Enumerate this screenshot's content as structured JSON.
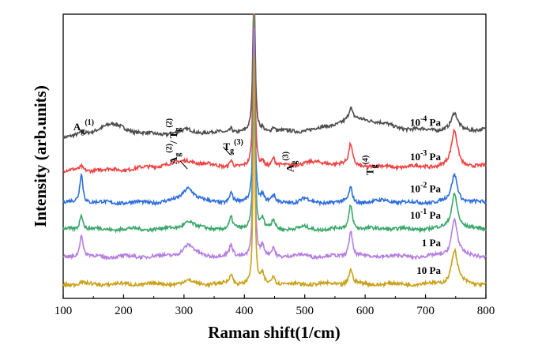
{
  "chart_data": {
    "type": "line",
    "xlabel": "Raman shift(1/cm)",
    "ylabel": "Intensity (arb.units)",
    "xlim": [
      100,
      800
    ],
    "xticks": [
      100,
      200,
      300,
      400,
      500,
      600,
      700,
      800
    ],
    "tick_labels": [
      "100",
      "200",
      "300",
      "400",
      "500",
      "600",
      "700",
      "800"
    ],
    "grid": false,
    "legend": "series labels printed beside each curve on the right",
    "peaks": [
      {
        "center": 130,
        "width": 3
      },
      {
        "center": 307,
        "width": 12
      },
      {
        "center": 378,
        "width": 3
      },
      {
        "center": 416,
        "width": 1.6
      },
      {
        "center": 430,
        "width": 3
      },
      {
        "center": 448,
        "width": 3
      },
      {
        "center": 500,
        "width": 8
      },
      {
        "center": 576,
        "width": 3.5
      },
      {
        "center": 632,
        "width": 10
      },
      {
        "center": 748,
        "width": 6
      }
    ],
    "series": [
      {
        "name": "10",
        "unit": "Pa",
        "superscript": "-4",
        "color": "#4d4d4d",
        "offset": 7.8,
        "baseline_slope": 0.35,
        "hump": [
          [
            180,
            35,
            0.55
          ],
          [
            590,
            55,
            0.6
          ]
        ],
        "amplitudes": [
          0.1,
          0.2,
          0.25,
          12,
          0.2,
          0.25,
          0,
          0.6,
          0,
          0.85
        ]
      },
      {
        "name": "10",
        "unit": "Pa",
        "superscript": "-3",
        "color": "#ee4444",
        "offset": 6.0,
        "baseline_slope": 0.2,
        "hump": [
          [
            300,
            60,
            0.3
          ],
          [
            520,
            60,
            0.25
          ]
        ],
        "amplitudes": [
          0.2,
          0.15,
          0.4,
          12,
          0.35,
          0.4,
          0,
          1.1,
          0,
          1.9
        ]
      },
      {
        "name": "10",
        "unit": "Pa",
        "superscript": "-2",
        "color": "#2e6fdc",
        "offset": 4.3,
        "baseline_slope": 0,
        "hump": [],
        "amplitudes": [
          1.6,
          0.8,
          0.5,
          12,
          0.4,
          0.35,
          0.2,
          0.8,
          0.15,
          1.5
        ]
      },
      {
        "name": "10",
        "unit": "Pa",
        "superscript": "-1",
        "color": "#3aa86b",
        "offset": 2.9,
        "baseline_slope": 0,
        "hump": [],
        "amplitudes": [
          0.85,
          0.4,
          0.6,
          12,
          0.5,
          0.5,
          0.1,
          1.3,
          0.05,
          1.9
        ]
      },
      {
        "name": "1",
        "unit": "Pa",
        "superscript": "",
        "color": "#b57fe0",
        "offset": 1.45,
        "baseline_slope": 0,
        "hump": [],
        "amplitudes": [
          1.2,
          0.6,
          0.6,
          12,
          0.5,
          0.5,
          0.1,
          1.4,
          0.05,
          2.0
        ]
      },
      {
        "name": "10",
        "unit": "Pa",
        "superscript": "",
        "color": "#c9a21a",
        "offset": 0.0,
        "baseline_slope": 0,
        "hump": [],
        "amplitudes": [
          0.1,
          0.15,
          0.55,
          12,
          0.5,
          0.5,
          0,
          0.8,
          0,
          1.8
        ]
      }
    ],
    "annotations": [
      {
        "base": "A",
        "sub": "g",
        "sup": "(1)",
        "x": 130
      },
      {
        "base": "A",
        "sub": "g",
        "sup": "(2)",
        "extra": "/ T",
        "extra_sub": "g",
        "extra_sup": "(2)",
        "x": 307
      },
      {
        "base": "T",
        "sub": "g",
        "sup": "(3)",
        "x": 378
      },
      {
        "base": "A",
        "sub": "g",
        "sup": "(3)",
        "x": 500
      },
      {
        "base": "T",
        "sub": "g",
        "sup": "(4)",
        "x": 632
      }
    ]
  }
}
